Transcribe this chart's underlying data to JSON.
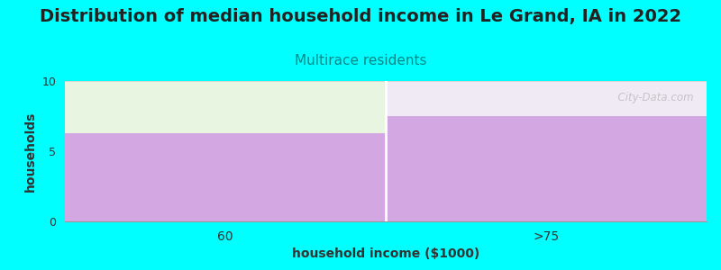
{
  "title": "Distribution of median household income in Le Grand, IA in 2022",
  "subtitle": "Multirace residents",
  "xlabel": "household income ($1000)",
  "ylabel": "households",
  "background_color": "#00FFFF",
  "plot_bg_color": "#FFFFFF",
  "categories": [
    "60",
    ">75"
  ],
  "values": [
    6.3,
    7.5
  ],
  "bar_color": "#CC99DD",
  "ylim": [
    0,
    10
  ],
  "yticks": [
    0,
    5,
    10
  ],
  "title_fontsize": 14,
  "subtitle_fontsize": 11,
  "subtitle_color": "#008888",
  "axis_label_fontsize": 10,
  "watermark": "  City-Data.com",
  "left_top_color": "#E8F5E0",
  "right_top_color": "#F0EAF5"
}
